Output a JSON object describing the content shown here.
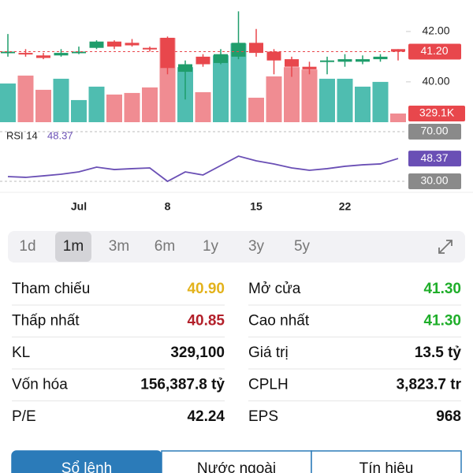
{
  "chart_data": {
    "type": "candlestick",
    "categories": [
      null,
      null,
      null,
      null,
      "Jul",
      null,
      null,
      null,
      null,
      "8",
      null,
      null,
      null,
      null,
      "15",
      null,
      null,
      null,
      null,
      "22",
      null,
      null,
      null
    ],
    "open": [
      41.15,
      41.15,
      41.05,
      41.05,
      41.15,
      41.35,
      41.6,
      41.55,
      41.35,
      41.75,
      40.4,
      41.0,
      40.75,
      41.0,
      41.55,
      41.2,
      40.9,
      40.6,
      40.8,
      40.8,
      40.8,
      40.9,
      41.3
    ],
    "high": [
      41.9,
      41.3,
      41.15,
      41.3,
      41.4,
      41.65,
      41.65,
      41.7,
      41.4,
      41.8,
      40.85,
      41.1,
      41.3,
      42.8,
      42.1,
      41.3,
      41.0,
      40.8,
      41.0,
      41.1,
      41.05,
      41.1,
      41.3
    ],
    "low": [
      41.0,
      41.0,
      40.9,
      41.0,
      41.1,
      41.3,
      41.3,
      41.4,
      41.2,
      40.3,
      39.3,
      40.6,
      40.7,
      40.9,
      41.0,
      40.3,
      40.2,
      40.3,
      40.3,
      40.6,
      40.7,
      40.8,
      40.85
    ],
    "close": [
      41.2,
      41.1,
      40.95,
      41.15,
      41.2,
      41.6,
      41.4,
      41.45,
      41.3,
      40.55,
      40.7,
      40.7,
      41.1,
      41.55,
      41.15,
      40.85,
      40.6,
      40.5,
      40.85,
      40.9,
      40.9,
      41.0,
      41.2
    ],
    "up_color": "#1f9d6b",
    "down_color": "#e8474c",
    "ylim": [
      38.9,
      43.25
    ],
    "yticks": [
      {
        "value": 42,
        "label": "42.00"
      },
      {
        "value": 40,
        "label": "40.00"
      }
    ],
    "last_price": {
      "value": 41.2,
      "label": "41.20"
    },
    "volume": {
      "values": [
        1470000,
        1770000,
        1230000,
        1650000,
        840000,
        1350000,
        1050000,
        1110000,
        1320000,
        3200000,
        2090000,
        1140000,
        2540000,
        2990000,
        930000,
        1740000,
        2090000,
        2000000,
        1650000,
        1650000,
        1350000,
        1530000,
        329100
      ],
      "last_label": "329.1K",
      "up_color": "#4fbdb0",
      "down_color": "#f08c92",
      "ylim": [
        0,
        4640000
      ]
    },
    "rsi": {
      "name": "RSI 14",
      "values": [
        33.8,
        33.2,
        34.4,
        35.7,
        37.6,
        41.4,
        39.5,
        40.2,
        40.8,
        30.0,
        37.6,
        35.1,
        42.7,
        50.3,
        46.5,
        44.0,
        40.8,
        38.9,
        40.2,
        42.1,
        43.3,
        44.0,
        48.37
      ],
      "last_label": "48.37",
      "color": "#6a4fb5",
      "ylim": [
        30,
        70
      ],
      "yticks": [
        {
          "value": 70,
          "label": "70.00"
        },
        {
          "value": 30,
          "label": "30.00"
        }
      ]
    }
  },
  "periods": [
    {
      "label": "1d"
    },
    {
      "label": "1m",
      "selected": true
    },
    {
      "label": "3m"
    },
    {
      "label": "6m"
    },
    {
      "label": "1y"
    },
    {
      "label": "3y"
    },
    {
      "label": "5y"
    }
  ],
  "stats": [
    [
      {
        "label": "Tham chiếu",
        "value": "40.90",
        "color": "#e3b21b"
      },
      {
        "label": "Mở cửa",
        "value": "41.30",
        "color": "#1fae2a"
      }
    ],
    [
      {
        "label": "Thấp nhất",
        "value": "40.85",
        "color": "#b3202a"
      },
      {
        "label": "Cao nhất",
        "value": "41.30",
        "color": "#1fae2a"
      }
    ],
    [
      {
        "label": "KL",
        "value": "329,100",
        "color": "#111111"
      },
      {
        "label": "Giá trị",
        "value": "13.5 tỷ",
        "color": "#111111"
      }
    ],
    [
      {
        "label": "Vốn hóa",
        "value": "156,387.8 tỷ",
        "color": "#111111"
      },
      {
        "label": "CPLH",
        "value": "3,823.7 tr",
        "color": "#111111"
      }
    ],
    [
      {
        "label": "P/E",
        "value": "42.24",
        "color": "#111111"
      },
      {
        "label": "EPS",
        "value": "968",
        "color": "#111111"
      }
    ]
  ],
  "tabs": [
    {
      "label": "Sổ lệnh",
      "selected": true
    },
    {
      "label": "Nước ngoài"
    },
    {
      "label": "Tín hiệu"
    }
  ]
}
